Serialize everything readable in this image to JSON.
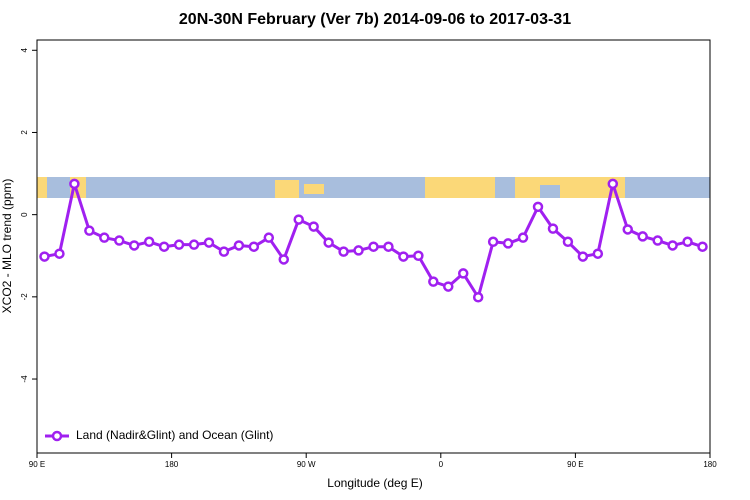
{
  "chart_data": {
    "type": "line",
    "title": "20N-30N February (Ver 7b)   2014-09-06 to 2017-03-31",
    "xlabel": "Longitude (deg E)",
    "ylabel": "XCO2 - MLO trend (ppm)",
    "x": [
      95,
      105,
      115,
      125,
      135,
      145,
      155,
      165,
      175,
      185,
      195,
      205,
      215,
      225,
      235,
      245,
      255,
      265,
      275,
      285,
      295,
      305,
      315,
      325,
      335,
      345,
      355,
      365,
      375,
      385,
      395,
      405,
      415,
      425,
      435,
      445,
      455,
      465,
      475,
      485,
      495,
      505,
      515,
      525,
      535
    ],
    "series": [
      {
        "name": "Land (Nadir&Glint) and Ocean (Glint)",
        "color": "#a020f0",
        "values": [
          -1.02,
          -0.95,
          0.75,
          -0.39,
          -0.56,
          -0.63,
          -0.75,
          -0.66,
          -0.78,
          -0.73,
          -0.73,
          -0.68,
          -0.9,
          -0.75,
          -0.78,
          -0.56,
          -1.09,
          -0.12,
          -0.29,
          -0.68,
          -0.9,
          -0.87,
          -0.78,
          -0.78,
          -1.02,
          -1.0,
          -1.63,
          -1.75,
          -1.43,
          -2.01,
          -0.66,
          -0.7,
          -0.56,
          0.19,
          -0.34,
          -0.66,
          -1.02,
          -0.95,
          0.75,
          -0.36,
          -0.53,
          -0.63,
          -0.75,
          -0.66,
          -0.78
        ]
      }
    ],
    "xlim": [
      90,
      540
    ],
    "xticks": [
      {
        "value": 90,
        "label": "90 E"
      },
      180,
      {
        "value": 270,
        "label": "90 W"
      },
      {
        "value": 360,
        "label": "0"
      },
      {
        "value": 450,
        "label": "90 E"
      },
      {
        "value": 540,
        "label": "180"
      }
    ],
    "ylim": [
      -5.8,
      4.25
    ],
    "yticks": [
      -4,
      -2,
      0,
      2,
      4
    ],
    "legend": "bottom left"
  }
}
